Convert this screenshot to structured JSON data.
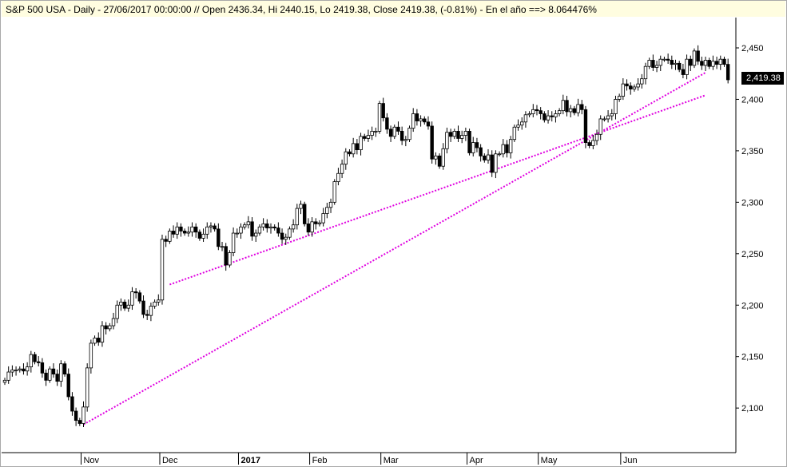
{
  "header": {
    "title": "S&P 500 USA - Daily - 27/06/2017 00:00:00 // Open 2436.34, Hi 2440.15, Lo 2419.38, Close 2419.38, (-0.81%) - En el año ==> 8.064476%"
  },
  "last_price_tag": "2,419.38",
  "colors": {
    "trendline": "#e000e0",
    "candle_body_up": "#ffffff",
    "candle_body_down": "#000000",
    "axis": "#000000"
  },
  "chart_data": {
    "type": "candlestick",
    "title": "S&P 500 USA - Daily - 27/06/2017 00:00:00 // Open 2436.34, Hi 2440.15, Lo 2419.38, Close 2419.38, (-0.81%) - En el año ==> 8.064476%",
    "ylim": [
      2075,
      2460
    ],
    "y_ticks": [
      {
        "value": 2100,
        "label": "2,100"
      },
      {
        "value": 2150,
        "label": "2,150"
      },
      {
        "value": 2200,
        "label": "2,200"
      },
      {
        "value": 2250,
        "label": "2,250"
      },
      {
        "value": 2300,
        "label": "2,300"
      },
      {
        "value": 2350,
        "label": "2,350"
      },
      {
        "value": 2400,
        "label": "2,400"
      },
      {
        "value": 2450,
        "label": "2,450"
      }
    ],
    "x_ticks": [
      {
        "index": 21,
        "label": "Nov",
        "bold": false
      },
      {
        "index": 42,
        "label": "Dec",
        "bold": false
      },
      {
        "index": 63,
        "label": "2017",
        "bold": true
      },
      {
        "index": 82,
        "label": "Feb",
        "bold": false
      },
      {
        "index": 101,
        "label": "Mar",
        "bold": false
      },
      {
        "index": 124,
        "label": "Apr",
        "bold": false
      },
      {
        "index": 143,
        "label": "May",
        "bold": false
      },
      {
        "index": 165,
        "label": "Jun",
        "bold": false
      }
    ],
    "trendlines": [
      {
        "x1": 21,
        "y1": 2084,
        "x2": 187,
        "y2": 2426
      },
      {
        "x1": 44,
        "y1": 2220,
        "x2": 187,
        "y2": 2404
      }
    ],
    "closes": [
      2127,
      2135,
      2137,
      2137,
      2138,
      2136,
      2140,
      2152,
      2145,
      2144,
      2134,
      2127,
      2138,
      2133,
      2126,
      2143,
      2133,
      2111,
      2097,
      2088,
      2085,
      2101,
      2139,
      2163,
      2168,
      2164,
      2180,
      2177,
      2180,
      2187,
      2200,
      2203,
      2197,
      2200,
      2213,
      2212,
      2204,
      2191,
      2190,
      2199,
      2203,
      2205,
      2264,
      2262,
      2272,
      2269,
      2276,
      2272,
      2270,
      2271,
      2276,
      2271,
      2265,
      2269,
      2276,
      2277,
      2274,
      2257,
      2257,
      2239,
      2251,
      2270,
      2270,
      2276,
      2278,
      2281,
      2267,
      2270,
      2276,
      2279,
      2275,
      2276,
      2275,
      2270,
      2264,
      2266,
      2274,
      2278,
      2294,
      2298,
      2279,
      2271,
      2281,
      2279,
      2280,
      2289,
      2295,
      2300,
      2320,
      2328,
      2337,
      2349,
      2347,
      2357,
      2351,
      2364,
      2362,
      2365,
      2369,
      2369,
      2396,
      2382,
      2371,
      2364,
      2373,
      2369,
      2360,
      2361,
      2372,
      2386,
      2379,
      2381,
      2378,
      2374,
      2342,
      2345,
      2335,
      2352,
      2368,
      2364,
      2369,
      2362,
      2365,
      2369,
      2348,
      2358,
      2353,
      2345,
      2341,
      2346,
      2329,
      2347,
      2347,
      2356,
      2348,
      2361,
      2373,
      2375,
      2378,
      2385,
      2386,
      2390,
      2389,
      2386,
      2380,
      2384,
      2383,
      2386,
      2389,
      2399,
      2388,
      2391,
      2387,
      2395,
      2390,
      2358,
      2355,
      2360,
      2366,
      2381,
      2381,
      2384,
      2386,
      2400,
      2403,
      2415,
      2413,
      2410,
      2412,
      2415,
      2420,
      2432,
      2438,
      2431,
      2433,
      2439,
      2439,
      2438,
      2434,
      2435,
      2429,
      2424,
      2439,
      2433,
      2447,
      2437,
      2433,
      2438,
      2432,
      2437,
      2434,
      2439,
      2434,
      2419
    ]
  }
}
